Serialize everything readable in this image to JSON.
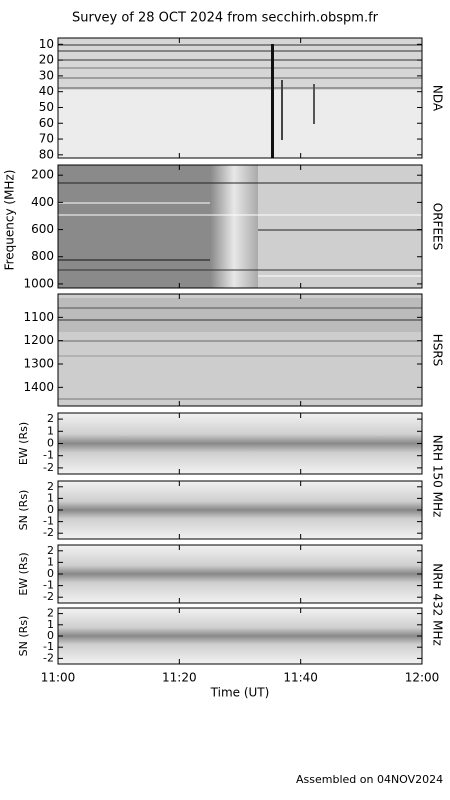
{
  "chart_data": {
    "type": "spectrogram",
    "title": "Survey of 28 OCT 2024 from secchirh.obspm.fr",
    "ylabel": "Frequency (MHz)",
    "xlabel": "Time (UT)",
    "footer": "Assembled on 04NOV2024",
    "xlim": [
      660,
      720
    ],
    "xticks": [
      {
        "value": 660,
        "label": "11:00"
      },
      {
        "value": 680,
        "label": "11:20"
      },
      {
        "value": 700,
        "label": "11:40"
      },
      {
        "value": 720,
        "label": "12:00"
      }
    ],
    "panels": [
      {
        "label": "NDA",
        "ylim": [
          82,
          6
        ],
        "yticks": [
          10,
          20,
          30,
          40,
          50,
          60,
          70,
          80
        ]
      },
      {
        "label": "ORFEES",
        "ylim": [
          1030,
          125
        ],
        "yticks": [
          200,
          400,
          600,
          800,
          1000
        ]
      },
      {
        "label": "HSRS",
        "ylim": [
          1480,
          1000
        ],
        "yticks": [
          1100,
          1200,
          1300,
          1400
        ]
      },
      {
        "label": "NRH 150 MHz",
        "ylabel": "EW (Rs)",
        "ylim": [
          -2.5,
          2.5
        ],
        "yticks": [
          -2,
          -1,
          0,
          1,
          2
        ]
      },
      {
        "ylabel": "SN (Rs)",
        "ylim": [
          -2.5,
          2.5
        ],
        "yticks": [
          -2,
          -1,
          0,
          1,
          2
        ]
      },
      {
        "label": "NRH 432 MHz",
        "ylabel": "EW (Rs)",
        "ylim": [
          -2.5,
          2.5
        ],
        "yticks": [
          -2,
          -1,
          0,
          1,
          2
        ]
      },
      {
        "ylabel": "SN (Rs)",
        "ylim": [
          -2.5,
          2.5
        ],
        "yticks": [
          -2,
          -1,
          0,
          1,
          2
        ]
      }
    ]
  }
}
